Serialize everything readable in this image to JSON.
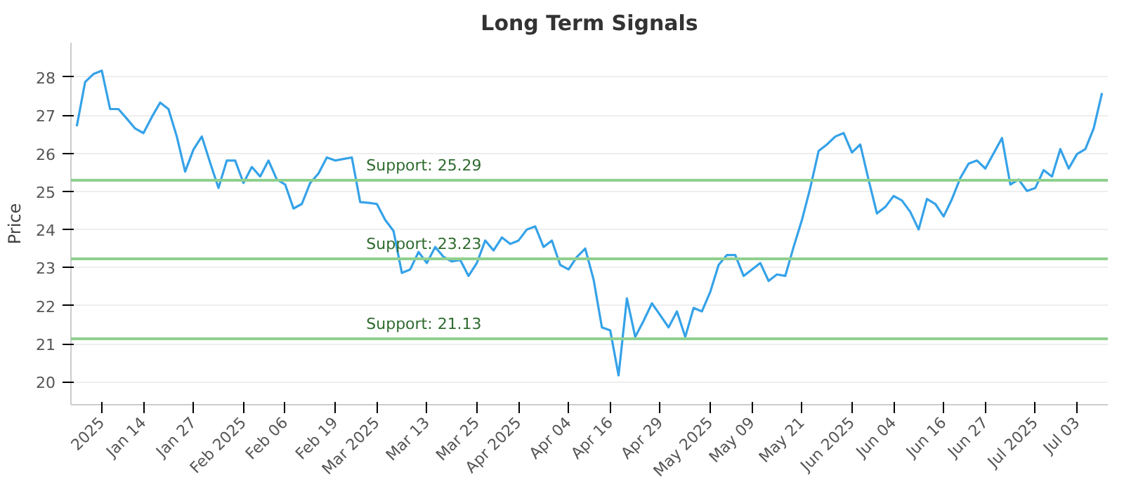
{
  "chart_data": {
    "type": "line",
    "title": "Long Term Signals",
    "ylabel": "Price",
    "categories": [
      null,
      null,
      null,
      "2025",
      null,
      null,
      null,
      null,
      "Jan 14",
      null,
      null,
      null,
      null,
      null,
      "Jan 27",
      null,
      null,
      null,
      null,
      null,
      "Feb 2025",
      null,
      null,
      null,
      null,
      "Feb 06",
      null,
      null,
      null,
      null,
      null,
      "Feb 19",
      null,
      null,
      null,
      null,
      "Mar 2025",
      null,
      null,
      null,
      null,
      null,
      "Mar 13",
      null,
      null,
      null,
      null,
      null,
      "Mar 25",
      null,
      null,
      null,
      null,
      "Apr 2025",
      null,
      null,
      null,
      null,
      null,
      "Apr 04",
      null,
      null,
      null,
      null,
      "Apr 16",
      null,
      null,
      null,
      null,
      null,
      "Apr 29",
      null,
      null,
      null,
      null,
      null,
      "May 2025",
      null,
      null,
      null,
      null,
      "May 09",
      null,
      null,
      null,
      null,
      null,
      "May 21",
      null,
      null,
      null,
      null,
      null,
      "Jun 2025",
      null,
      null,
      null,
      null,
      "Jun 04",
      null,
      null,
      null,
      null,
      null,
      "Jun 16",
      null,
      null,
      null,
      null,
      "Jun 27",
      null,
      null,
      null,
      null,
      null,
      "Jul 2025",
      null,
      null,
      null,
      null,
      "Jul 03",
      null,
      null,
      null
    ],
    "series": [
      {
        "color": "#35a2e8",
        "values": [
          26.71,
          27.87,
          28.08,
          28.17,
          27.16,
          27.16,
          26.91,
          26.65,
          26.53,
          26.95,
          27.33,
          27.16,
          26.44,
          25.52,
          26.1,
          26.44,
          25.75,
          25.09,
          25.81,
          25.81,
          25.22,
          25.64,
          25.39,
          25.81,
          25.31,
          25.18,
          24.55,
          24.67,
          25.22,
          25.47,
          25.89,
          25.81,
          25.85,
          25.89,
          24.72,
          24.7,
          24.67,
          24.25,
          23.96,
          22.86,
          22.95,
          23.41,
          23.12,
          23.54,
          23.28,
          23.16,
          23.2,
          22.78,
          23.12,
          23.71,
          23.45,
          23.79,
          23.62,
          23.71,
          24.0,
          24.08,
          23.54,
          23.71,
          23.07,
          22.95,
          23.28,
          23.5,
          22.69,
          21.43,
          21.35,
          20.17,
          22.19,
          21.18,
          21.6,
          22.06,
          21.75,
          21.43,
          21.85,
          21.18,
          21.94,
          21.85,
          22.36,
          23.07,
          23.33,
          23.33,
          22.78,
          22.95,
          23.12,
          22.65,
          22.82,
          22.78,
          23.54,
          24.25,
          25.09,
          26.06,
          26.23,
          26.44,
          26.53,
          26.02,
          26.23,
          25.3,
          24.42,
          24.59,
          24.88,
          24.76,
          24.46,
          24.0,
          24.8,
          24.67,
          24.34,
          24.8,
          25.35,
          25.73,
          25.81,
          25.6,
          26.0,
          26.4,
          25.18,
          25.31,
          25.01,
          25.09,
          25.56,
          25.39,
          26.11,
          25.6,
          25.98,
          26.11,
          26.65,
          27.58
        ]
      }
    ],
    "ylim": [
      19.4,
      28.9
    ],
    "yticks": [
      20,
      21,
      22,
      23,
      24,
      25,
      26,
      27,
      28
    ],
    "grid": "y",
    "marker": "none",
    "line_style": "solid",
    "ref_lines": [
      {
        "axis": "y",
        "value": 25.29,
        "label": "Support: 25.29",
        "color": "#8fd08f"
      },
      {
        "axis": "y",
        "value": 23.23,
        "label": "Support: 23.23",
        "color": "#8fd08f"
      },
      {
        "axis": "y",
        "value": 21.13,
        "label": "Support: 21.13",
        "color": "#8fd08f"
      }
    ]
  }
}
